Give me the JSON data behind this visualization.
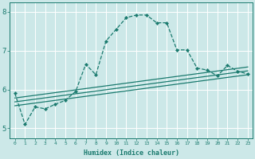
{
  "xlabel": "Humidex (Indice chaleur)",
  "background_color": "#cce8e8",
  "grid_color": "#ffffff",
  "line_color": "#1a7a6e",
  "xlim": [
    -0.5,
    23.5
  ],
  "ylim": [
    4.75,
    8.25
  ],
  "x_ticks": [
    0,
    1,
    2,
    3,
    4,
    5,
    6,
    7,
    8,
    9,
    10,
    11,
    12,
    13,
    14,
    15,
    16,
    17,
    18,
    19,
    20,
    21,
    22,
    23
  ],
  "y_ticks": [
    5,
    6,
    7,
    8
  ],
  "main_line": {
    "x": [
      0,
      1,
      2,
      3,
      4,
      5,
      6,
      7,
      8,
      9,
      10,
      11,
      12,
      13,
      14,
      15,
      16,
      17,
      18,
      19,
      20,
      21,
      22,
      23
    ],
    "y": [
      5.9,
      5.1,
      5.55,
      5.5,
      5.62,
      5.72,
      5.95,
      6.65,
      6.38,
      7.25,
      7.55,
      7.85,
      7.92,
      7.92,
      7.72,
      7.72,
      7.02,
      7.02,
      6.55,
      6.5,
      6.35,
      6.62,
      6.47,
      6.4
    ]
  },
  "flat_lines": [
    {
      "x": [
        0,
        23
      ],
      "y": [
        5.58,
        6.38
      ]
    },
    {
      "x": [
        0,
        23
      ],
      "y": [
        5.68,
        6.48
      ]
    },
    {
      "x": [
        0,
        23
      ],
      "y": [
        5.78,
        6.58
      ]
    }
  ],
  "xlabel_fontsize": 6.0,
  "xtick_fontsize": 4.5,
  "ytick_fontsize": 6.5
}
